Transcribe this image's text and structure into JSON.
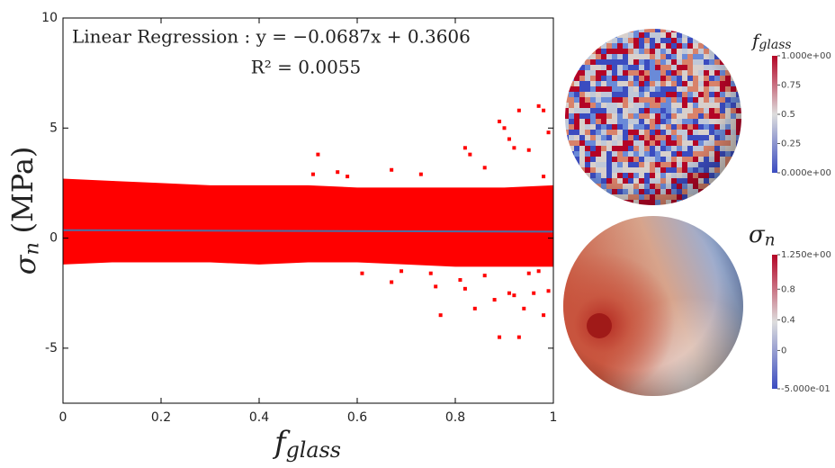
{
  "chart_data": {
    "type": "scatter",
    "annotations": [
      "Linear Regression : y = −0.0687x + 0.3606",
      "R² = 0.0055"
    ],
    "x_label": {
      "symbol": "f",
      "subscript": "glass"
    },
    "y_label": {
      "symbol": "σ",
      "subscript": "n",
      "unit": "(MPa)"
    },
    "xlim": [
      0,
      1
    ],
    "ylim": [
      -7.5,
      10
    ],
    "xticks": [
      0,
      0.2,
      0.4,
      0.6,
      0.8,
      1
    ],
    "yticks": [
      -5,
      0,
      5,
      10
    ],
    "color": "#ff0000",
    "line_color": "#4a6fa5",
    "regression": {
      "slope": -0.0687,
      "intercept": 0.3606
    },
    "band": {
      "x": [
        0,
        0.1,
        0.2,
        0.3,
        0.4,
        0.5,
        0.6,
        0.7,
        0.8,
        0.9,
        1
      ],
      "upper": [
        2.7,
        2.6,
        2.5,
        2.4,
        2.4,
        2.4,
        2.3,
        2.3,
        2.3,
        2.3,
        2.4
      ],
      "lower": [
        -1.2,
        -1.1,
        -1.1,
        -1.1,
        -1.2,
        -1.1,
        -1.1,
        -1.2,
        -1.3,
        -1.3,
        -1.3
      ]
    },
    "x": [
      0.52,
      0.51,
      0.56,
      0.58,
      0.67,
      0.73,
      0.82,
      0.83,
      0.86,
      0.89,
      0.9,
      0.91,
      0.92,
      0.93,
      0.95,
      0.97,
      0.98,
      0.99,
      0.98,
      0.61,
      0.67,
      0.69,
      0.75,
      0.76,
      0.77,
      0.81,
      0.82,
      0.84,
      0.86,
      0.88,
      0.89,
      0.93,
      0.91,
      0.92,
      0.94,
      0.95,
      0.96,
      0.97,
      0.98,
      0.99
    ],
    "values": [
      3.8,
      2.9,
      3.0,
      2.8,
      3.1,
      2.9,
      4.1,
      3.8,
      3.2,
      5.3,
      5.0,
      4.5,
      4.1,
      5.8,
      4.0,
      6.0,
      5.8,
      4.8,
      2.8,
      -1.6,
      -2.0,
      -1.5,
      -1.6,
      -2.2,
      -3.5,
      -1.9,
      -2.3,
      -3.2,
      -1.7,
      -2.8,
      -4.5,
      -4.5,
      -2.5,
      -2.6,
      -3.2,
      -1.6,
      -2.5,
      -1.5,
      -3.5,
      -2.4
    ]
  },
  "colorbars": [
    {
      "title": {
        "symbol": "f",
        "subscript": "glass"
      },
      "lim": [
        0,
        1
      ],
      "colors": [
        "#3b4cc0",
        "#dddddd",
        "#b40426"
      ],
      "ticks": [
        {
          "value": 1,
          "label": "1.000e+00"
        },
        0.75,
        0.5,
        0.25,
        {
          "value": 0,
          "label": "0.000e+00"
        }
      ]
    },
    {
      "title": {
        "symbol": "σ",
        "subscript": "n"
      },
      "lim": [
        -0.5,
        1.25
      ],
      "colors": [
        "#3b4cc0",
        "#dddddd",
        "#b40426"
      ],
      "ticks": [
        {
          "value": 1.25,
          "label": "1.250e+00"
        },
        0.8,
        0.4,
        0,
        {
          "value": -0.5,
          "label": "-5.000e-01"
        }
      ]
    }
  ]
}
